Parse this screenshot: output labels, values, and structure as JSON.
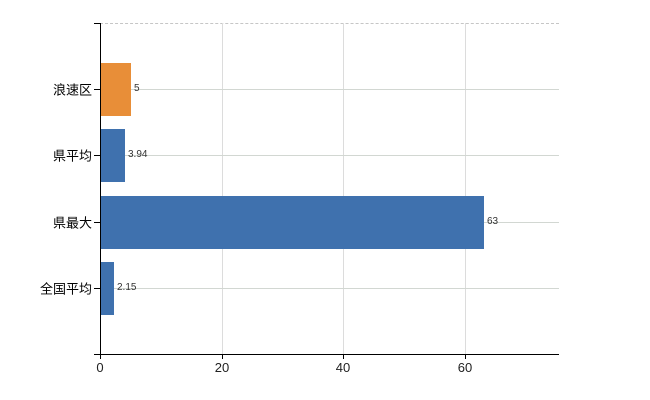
{
  "colors": {
    "bar_blue": "#3f71ae",
    "bar_orange": "#e88e38",
    "grid_vertical": "#dcdcdc",
    "grid_horizontal": "#d2d7d2",
    "axis": "#000000",
    "value_label": "#333333",
    "tick_label": "#222222",
    "category_label": "#000000",
    "background": "#ffffff"
  },
  "chart_data": {
    "type": "bar",
    "orientation": "horizontal",
    "title": "",
    "xlabel": "",
    "ylabel": "",
    "categories": [
      "浪速区",
      "県平均",
      "県最大",
      "全国平均"
    ],
    "values": [
      5,
      3.94,
      63,
      2.15
    ],
    "value_labels": [
      "5",
      "3.94",
      "63",
      "2.15"
    ],
    "bar_color_keys": [
      "bar_orange",
      "bar_blue",
      "bar_blue",
      "bar_blue"
    ],
    "x_tick_values": [
      0,
      20,
      40,
      60
    ],
    "x_tick_labels": [
      "0",
      "20",
      "40",
      "60"
    ],
    "xlim": [
      0,
      75.5
    ],
    "grid": true,
    "legend_position": "none",
    "plot_top_border_style": "dashed"
  }
}
